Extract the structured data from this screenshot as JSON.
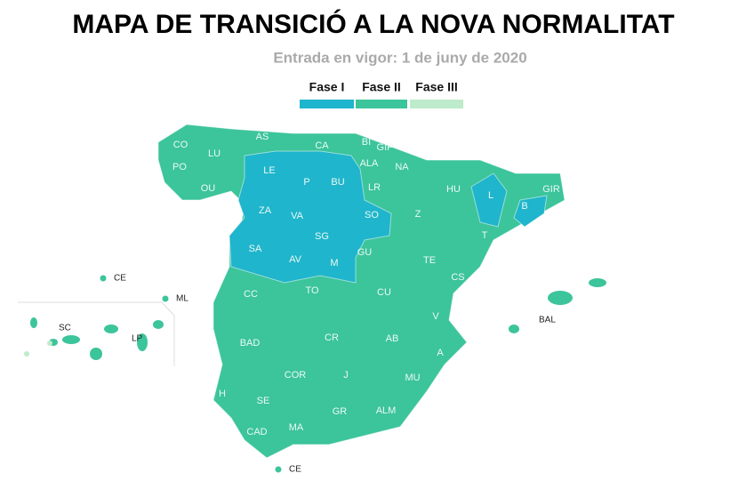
{
  "title": "MAPA DE TRANSICIÓ A LA NOVA NORMALITAT",
  "subtitle": "Entrada en vigor: 1 de juny de 2020",
  "legend": [
    {
      "label": "Fase I",
      "color": "#1fb5cc"
    },
    {
      "label": "Fase II",
      "color": "#3cc49b"
    },
    {
      "label": "Fase III",
      "color": "#bdebcb"
    }
  ],
  "regions": [
    {
      "label": "CO"
    },
    {
      "label": "LU"
    },
    {
      "label": "AS"
    },
    {
      "label": "CA"
    },
    {
      "label": "BI"
    },
    {
      "label": "GIP"
    },
    {
      "label": "PO"
    },
    {
      "label": "OU"
    },
    {
      "label": "LE"
    },
    {
      "label": "P"
    },
    {
      "label": "BU"
    },
    {
      "label": "ALA"
    },
    {
      "label": "NA"
    },
    {
      "label": "LR"
    },
    {
      "label": "HU"
    },
    {
      "label": "L"
    },
    {
      "label": "GIR"
    },
    {
      "label": "B"
    },
    {
      "label": "ZA"
    },
    {
      "label": "VA"
    },
    {
      "label": "SO"
    },
    {
      "label": "Z"
    },
    {
      "label": "SA"
    },
    {
      "label": "SG"
    },
    {
      "label": "AV"
    },
    {
      "label": "M"
    },
    {
      "label": "GU"
    },
    {
      "label": "TE"
    },
    {
      "label": "T"
    },
    {
      "label": "CS"
    },
    {
      "label": "CC"
    },
    {
      "label": "TO"
    },
    {
      "label": "CU"
    },
    {
      "label": "V"
    },
    {
      "label": "BAD"
    },
    {
      "label": "CR"
    },
    {
      "label": "AB"
    },
    {
      "label": "A"
    },
    {
      "label": "H"
    },
    {
      "label": "COR"
    },
    {
      "label": "J"
    },
    {
      "label": "MU"
    },
    {
      "label": "SE"
    },
    {
      "label": "GR"
    },
    {
      "label": "ALM"
    },
    {
      "label": "CAD"
    },
    {
      "label": "MA"
    },
    {
      "label": "CE"
    },
    {
      "label": "BAL"
    },
    {
      "label": "CE"
    },
    {
      "label": "ML"
    },
    {
      "label": "SC"
    },
    {
      "label": "LP"
    }
  ]
}
